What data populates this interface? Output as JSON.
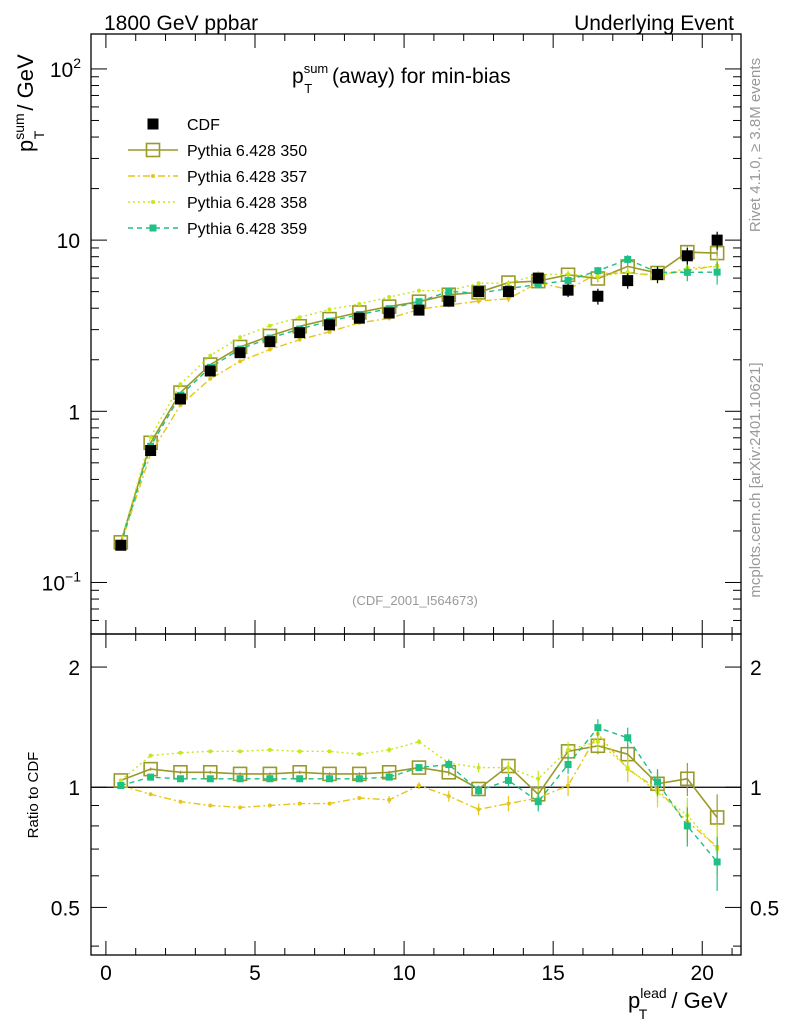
{
  "header": {
    "left": "1800 GeV ppbar",
    "right": "Underlying Event"
  },
  "side_labels": {
    "rivet": "Rivet 4.1.0, ≥ 3.8M events",
    "mcplots": "mcplots.cern.ch [arXiv:2401.10621]"
  },
  "analysis_id": "(CDF_2001_I564673)",
  "colors": {
    "cdf": "#000000",
    "p350": "#9a9a2a",
    "p357": "#e6c619",
    "p358": "#c8e619",
    "p359": "#1fbf85",
    "axis": "#000000",
    "watermark": "#999999"
  },
  "chart_data": {
    "type": "line",
    "title": "p_T^sum (away) for min-bias",
    "title_parts": {
      "p": "p",
      "sup": "sum",
      "sub": "T",
      "rest": " (away) for min-bias"
    },
    "ylabel": "p_T^sum / GeV",
    "ylabel_parts": {
      "p": "p",
      "sup": "sum",
      "sub": "T",
      "rest": " / GeV"
    },
    "xlabel": "p_T^lead / GeV",
    "xlabel_parts": {
      "p": "p",
      "sup": "lead",
      "sub": "T",
      "rest": " / GeV"
    },
    "ratio_ylabel": "Ratio to CDF",
    "x_range": [
      -0.5,
      21.3
    ],
    "ylim_main": [
      0.05,
      160
    ],
    "ylim_ratio": [
      0.38,
      2.42
    ],
    "x_ticks": [
      0,
      5,
      10,
      15,
      20
    ],
    "x_tick_labels": [
      "0",
      "5",
      "10",
      "15",
      "20"
    ],
    "main_y_ticks": [
      {
        "v": 0.1,
        "base": "10",
        "exp": "−1"
      },
      {
        "v": 1,
        "text": "1"
      },
      {
        "v": 10,
        "text": "10"
      },
      {
        "v": 100,
        "base": "10",
        "exp": "2"
      }
    ],
    "ratio_y_ticks": [
      {
        "v": 0.5,
        "text": "0.5"
      },
      {
        "v": 1,
        "text": "1"
      },
      {
        "v": 2,
        "text": "2"
      }
    ],
    "x": [
      0.5,
      1.5,
      2.5,
      3.5,
      4.5,
      5.5,
      6.5,
      7.5,
      8.5,
      9.5,
      10.5,
      11.5,
      12.5,
      13.5,
      14.5,
      15.5,
      16.5,
      17.5,
      18.5,
      19.5,
      20.5
    ],
    "data": {
      "name": "CDF",
      "values": [
        0.165,
        0.59,
        1.18,
        1.72,
        2.2,
        2.55,
        2.88,
        3.2,
        3.5,
        3.75,
        3.9,
        4.4,
        5.0,
        5.0,
        6.0,
        5.1,
        4.7,
        5.8,
        6.3,
        8.1,
        10.0
      ],
      "errors": [
        0.008,
        0.02,
        0.04,
        0.05,
        0.06,
        0.07,
        0.08,
        0.09,
        0.1,
        0.12,
        0.15,
        0.2,
        0.25,
        0.3,
        0.4,
        0.45,
        0.5,
        0.6,
        0.7,
        0.9,
        1.2
      ]
    },
    "series": [
      {
        "name": "Pythia 6.428 350",
        "style": "solid-open-square",
        "ratio": [
          1.04,
          1.11,
          1.09,
          1.09,
          1.08,
          1.08,
          1.09,
          1.08,
          1.08,
          1.09,
          1.12,
          1.09,
          0.99,
          1.13,
          0.96,
          1.23,
          1.27,
          1.21,
          1.02,
          1.05,
          0.84
        ],
        "ratio_err": [
          0.01,
          0.01,
          0.01,
          0.01,
          0.01,
          0.01,
          0.01,
          0.01,
          0.01,
          0.01,
          0.02,
          0.02,
          0.02,
          0.03,
          0.04,
          0.05,
          0.06,
          0.07,
          0.08,
          0.1,
          0.12
        ]
      },
      {
        "name": "Pythia 6.428 357",
        "style": "dashdot-dot",
        "ratio": [
          1.01,
          0.96,
          0.92,
          0.9,
          0.89,
          0.9,
          0.91,
          0.91,
          0.94,
          0.93,
          1.01,
          0.95,
          0.88,
          0.91,
          0.94,
          1.01,
          1.36,
          1.11,
          0.99,
          0.82,
          0.71
        ],
        "ratio_err": [
          0.01,
          0.01,
          0.01,
          0.01,
          0.01,
          0.01,
          0.01,
          0.01,
          0.01,
          0.02,
          0.02,
          0.03,
          0.03,
          0.04,
          0.05,
          0.06,
          0.07,
          0.08,
          0.08,
          0.09,
          0.1
        ]
      },
      {
        "name": "Pythia 6.428 358",
        "style": "dotted-dot",
        "ratio": [
          1.04,
          1.2,
          1.22,
          1.23,
          1.23,
          1.24,
          1.23,
          1.23,
          1.21,
          1.24,
          1.3,
          1.15,
          1.12,
          1.12,
          1.05,
          1.24,
          1.3,
          1.12,
          0.97,
          0.85,
          0.7
        ],
        "ratio_err": [
          0.01,
          0.01,
          0.01,
          0.01,
          0.01,
          0.01,
          0.01,
          0.01,
          0.01,
          0.02,
          0.02,
          0.03,
          0.03,
          0.04,
          0.05,
          0.06,
          0.07,
          0.08,
          0.08,
          0.09,
          0.1
        ]
      },
      {
        "name": "Pythia 6.428 359",
        "style": "dashed-square",
        "ratio": [
          1.01,
          1.06,
          1.05,
          1.05,
          1.05,
          1.05,
          1.05,
          1.05,
          1.05,
          1.06,
          1.12,
          1.14,
          0.98,
          1.04,
          0.92,
          1.14,
          1.41,
          1.33,
          1.03,
          0.8,
          0.65
        ],
        "ratio_err": [
          0.01,
          0.01,
          0.01,
          0.01,
          0.01,
          0.01,
          0.01,
          0.01,
          0.01,
          0.02,
          0.02,
          0.03,
          0.03,
          0.04,
          0.05,
          0.06,
          0.07,
          0.08,
          0.08,
          0.09,
          0.1
        ]
      }
    ],
    "legend_position": "top-left"
  }
}
